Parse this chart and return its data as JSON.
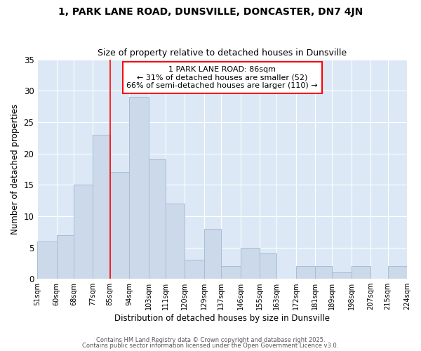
{
  "title": "1, PARK LANE ROAD, DUNSVILLE, DONCASTER, DN7 4JN",
  "subtitle": "Size of property relative to detached houses in Dunsville",
  "xlabel": "Distribution of detached houses by size in Dunsville",
  "ylabel": "Number of detached properties",
  "bar_color": "#ccd9ea",
  "bar_edgecolor": "#a8bdd4",
  "red_line_x": 85,
  "annotation_text": "1 PARK LANE ROAD: 86sqm\n← 31% of detached houses are smaller (52)\n66% of semi-detached houses are larger (110) →",
  "footer1": "Contains HM Land Registry data © Crown copyright and database right 2025.",
  "footer2": "Contains public sector information licensed under the Open Government Licence v3.0.",
  "bin_edges": [
    51,
    60,
    68,
    77,
    85,
    94,
    103,
    111,
    120,
    129,
    137,
    146,
    155,
    163,
    172,
    181,
    189,
    198,
    207,
    215,
    224
  ],
  "counts": [
    6,
    7,
    15,
    23,
    17,
    29,
    19,
    12,
    3,
    8,
    2,
    5,
    4,
    0,
    2,
    2,
    1,
    2,
    0,
    2
  ],
  "xlim_left": 51,
  "xlim_right": 224,
  "ylim_top": 35,
  "plot_bg_color": "#dce8f5",
  "fig_bg_color": "#ffffff",
  "grid_color": "#ffffff",
  "yticks": [
    0,
    5,
    10,
    15,
    20,
    25,
    30,
    35
  ]
}
